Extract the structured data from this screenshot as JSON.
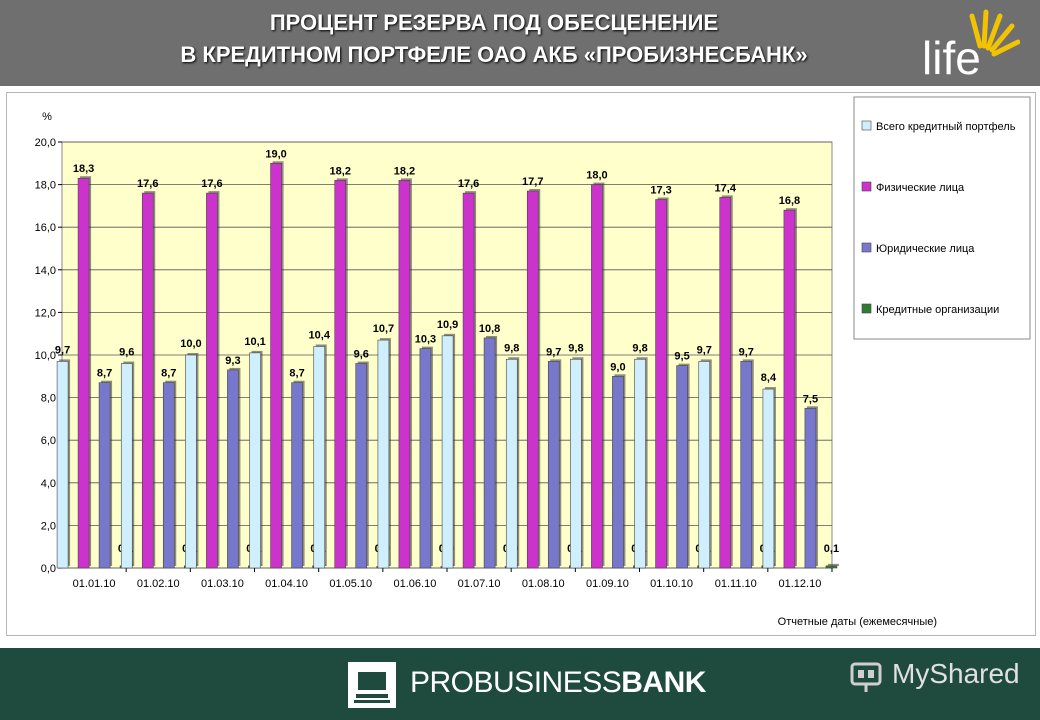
{
  "header": {
    "title_line1": "ПРОЦЕНТ РЕЗЕРВА ПОД ОБЕСЦЕНЕНИЕ",
    "title_line2": "В КРЕДИТНОМ ПОРТФЕЛЕ ОАО АКБ «ПРОБИЗНЕСБАНК»",
    "logo_text": "life"
  },
  "footer": {
    "bank_name_light": "PROBUSINESS",
    "bank_name_bold": "BANK",
    "watermark": "MyShared"
  },
  "colors": {
    "header_bg": "#6f6f6f",
    "footer_bg": "#1f4a3e",
    "plot_bg": "#ffffcc",
    "life_yellow": "#f2c300"
  },
  "chart_data": {
    "type": "bar",
    "ylabel": "%",
    "xlabel": "Отчетные даты (ежемесячные)",
    "ylim": [
      0,
      20
    ],
    "y_ticks": [
      "0,0",
      "2,0",
      "4,0",
      "6,0",
      "8,0",
      "10,0",
      "12,0",
      "14,0",
      "16,0",
      "18,0",
      "20,0"
    ],
    "grid": true,
    "legend_position": "right",
    "categories": [
      "01.01.10",
      "01.02.10",
      "01.03.10",
      "01.04.10",
      "01.05.10",
      "01.06.10",
      "01.07.10",
      "01.08.10",
      "01.09.10",
      "01.10.10",
      "01.11.10",
      "01.12.10"
    ],
    "series": [
      {
        "name": "Всего кредитный портфель",
        "color": "#cfefff",
        "values": [
          9.7,
          9.6,
          10.0,
          10.1,
          10.4,
          10.7,
          10.9,
          9.8,
          9.8,
          9.8,
          9.7,
          8.4
        ],
        "labels": [
          "9,7",
          "9,6",
          "10,0",
          "10,1",
          "10,4",
          "10,7",
          "10,9",
          "9,8",
          "9,8",
          "9,8",
          "9,7",
          "8,4"
        ]
      },
      {
        "name": "Физические лица",
        "color": "#cc33cc",
        "values": [
          18.3,
          17.6,
          17.6,
          19.0,
          18.2,
          18.2,
          17.6,
          17.7,
          18.0,
          17.3,
          17.4,
          16.8
        ],
        "labels": [
          "18,3",
          "17,6",
          "17,6",
          "19,0",
          "18,2",
          "18,2",
          "17,6",
          "17,7",
          "18,0",
          "17,3",
          "17,4",
          "16,8"
        ]
      },
      {
        "name": "Юридические лица",
        "color": "#7777cc",
        "values": [
          8.7,
          8.7,
          9.3,
          8.7,
          9.6,
          10.3,
          10.8,
          9.7,
          9.0,
          9.5,
          9.7,
          7.5
        ],
        "labels": [
          "8,7",
          "8,7",
          "9,3",
          "8,7",
          "9,6",
          "10,3",
          "10,8",
          "9,7",
          "9,0",
          "9,5",
          "9,7",
          "7,5"
        ]
      },
      {
        "name": "Кредитные организации",
        "color": "#2e7d32",
        "values": [
          0.1,
          0.1,
          0.1,
          0.1,
          0.0,
          0.0,
          0.0,
          0.1,
          0.1,
          0.1,
          0.1,
          0.1
        ],
        "labels": [
          "0,1",
          "0,1",
          "0,1",
          "0,1",
          "0,0",
          "0,0",
          "0,0",
          "0,1",
          "0,1",
          "0,1",
          "0,1",
          "0,1"
        ]
      }
    ]
  }
}
